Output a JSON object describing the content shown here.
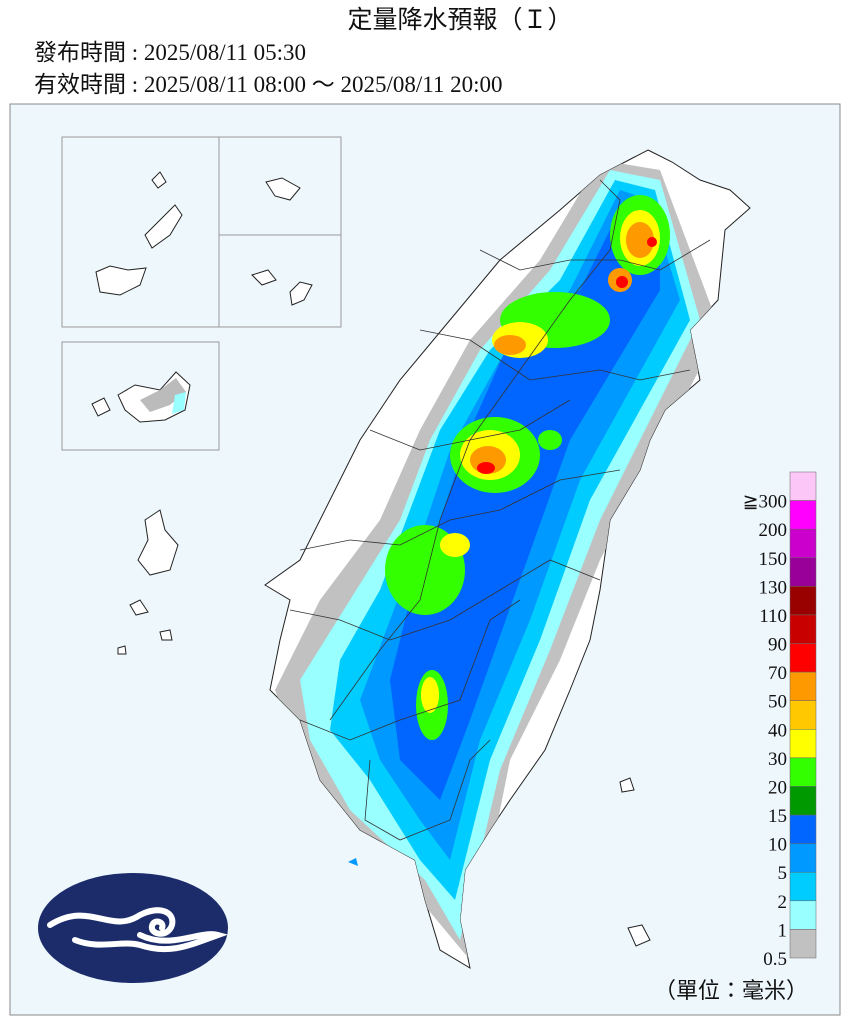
{
  "header": {
    "title": "定量降水預報（Ｉ）",
    "issued": "發布時間 : 2025/08/11 05:30",
    "valid": "有效時間 : 2025/08/11 08:00 ～ 2025/08/11 20:00"
  },
  "legend": {
    "colors": [
      "#fcc6f7",
      "#ff00ff",
      "#cc00cc",
      "#990099",
      "#990000",
      "#c80000",
      "#ff0000",
      "#ff9900",
      "#ffc800",
      "#ffff00",
      "#33ff00",
      "#009900",
      "#0066ff",
      "#0099ff",
      "#00ccff",
      "#99ffff",
      "#c1c1c1"
    ],
    "labels": [
      "≧300",
      "200",
      "150",
      "130",
      "110",
      "90",
      "70",
      "50",
      "40",
      "30",
      "20",
      "15",
      "10",
      "5",
      "2",
      "1",
      "0.5"
    ],
    "unit": "（單位：毫米）"
  }
}
